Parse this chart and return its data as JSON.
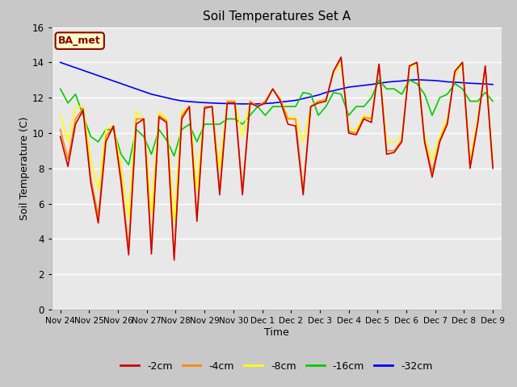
{
  "title": "Soil Temperatures Set A",
  "xlabel": "Time",
  "ylabel": "Soil Temperature (C)",
  "ylim": [
    0,
    16
  ],
  "yticks": [
    0,
    2,
    4,
    6,
    8,
    10,
    12,
    14,
    16
  ],
  "fig_bg_color": "#c8c8c8",
  "axes_bg_color": "#e8e8e8",
  "grid_color": "white",
  "annotation_text": "BA_met",
  "annotation_bg": "#ffffcc",
  "annotation_border": "#8b0000",
  "colors": {
    "-2cm": "#cc0000",
    "-4cm": "#ff8800",
    "-8cm": "#ffff00",
    "-16cm": "#00cc00",
    "-32cm": "#0000ff"
  },
  "legend_colors": [
    "#cc0000",
    "#ff8800",
    "#ffff00",
    "#00cc00",
    "#0000ff"
  ],
  "legend_labels": [
    "-2cm",
    "-4cm",
    "-8cm",
    "-16cm",
    "-32cm"
  ],
  "x_labels": [
    "Nov 24",
    "Nov 25",
    "Nov 26",
    "Nov 27",
    "Nov 28",
    "Nov 29",
    "Nov 30",
    "Dec 1",
    "Dec 2",
    "Dec 3",
    "Dec 4",
    "Dec 5",
    "Dec 6",
    "Dec 7",
    "Dec 8",
    "Dec 9"
  ],
  "series": {
    "-2cm": [
      9.8,
      8.1,
      10.5,
      11.3,
      7.2,
      4.9,
      9.5,
      10.4,
      7.2,
      3.1,
      10.5,
      10.8,
      3.15,
      10.9,
      10.6,
      2.8,
      10.8,
      11.5,
      5.0,
      11.4,
      11.5,
      6.5,
      11.7,
      11.7,
      6.5,
      11.7,
      11.5,
      11.7,
      12.5,
      11.8,
      10.5,
      10.4,
      6.5,
      11.5,
      11.7,
      11.8,
      13.5,
      14.3,
      10.0,
      9.9,
      10.8,
      10.6,
      13.9,
      8.8,
      8.9,
      9.5,
      13.8,
      14.0,
      9.5,
      7.5,
      9.5,
      10.5,
      13.5,
      14.0,
      8.0,
      10.5,
      13.8,
      8.0
    ],
    "-4cm": [
      10.2,
      8.5,
      10.8,
      11.4,
      7.5,
      5.3,
      9.8,
      10.4,
      7.5,
      3.5,
      10.8,
      10.8,
      3.6,
      11.0,
      10.7,
      3.0,
      11.0,
      11.5,
      5.3,
      11.5,
      11.5,
      6.8,
      11.8,
      11.8,
      6.8,
      11.8,
      11.5,
      11.8,
      12.5,
      11.9,
      10.8,
      10.8,
      6.8,
      11.5,
      11.8,
      11.9,
      13.5,
      14.2,
      10.1,
      10.0,
      10.9,
      10.8,
      13.9,
      9.0,
      9.0,
      9.6,
      13.8,
      14.0,
      9.6,
      7.8,
      9.6,
      10.6,
      13.5,
      14.0,
      8.1,
      10.6,
      13.8,
      8.1
    ],
    "-8cm": [
      11.0,
      9.5,
      11.5,
      11.5,
      8.5,
      6.8,
      10.2,
      10.4,
      8.2,
      5.2,
      11.2,
      10.8,
      5.4,
      11.2,
      10.8,
      5.0,
      11.2,
      11.5,
      6.8,
      11.5,
      11.5,
      8.0,
      11.8,
      11.8,
      9.8,
      11.8,
      11.5,
      11.8,
      12.5,
      11.9,
      10.9,
      10.9,
      9.5,
      11.5,
      11.8,
      11.9,
      13.4,
      13.9,
      10.3,
      10.2,
      11.0,
      10.9,
      13.8,
      9.5,
      9.5,
      9.8,
      13.7,
      13.9,
      9.8,
      8.5,
      9.8,
      10.8,
      13.3,
      13.9,
      8.5,
      10.8,
      13.7,
      8.5
    ],
    "-16cm": [
      12.5,
      11.7,
      12.2,
      11.0,
      9.8,
      9.5,
      10.2,
      10.2,
      8.8,
      8.2,
      10.2,
      9.8,
      8.8,
      10.2,
      9.6,
      8.7,
      10.2,
      10.5,
      9.5,
      10.5,
      10.5,
      10.5,
      10.8,
      10.8,
      10.5,
      11.0,
      11.5,
      11.0,
      11.5,
      11.5,
      11.5,
      11.5,
      12.3,
      12.2,
      11.0,
      11.5,
      12.3,
      12.2,
      11.0,
      11.5,
      11.5,
      12.0,
      13.0,
      12.5,
      12.5,
      12.2,
      13.0,
      12.8,
      12.2,
      11.0,
      12.0,
      12.2,
      12.8,
      12.5,
      11.8,
      11.8,
      12.3,
      11.8
    ],
    "-32cm": [
      14.0,
      13.85,
      13.7,
      13.55,
      13.4,
      13.25,
      13.1,
      12.95,
      12.8,
      12.65,
      12.5,
      12.35,
      12.2,
      12.1,
      12.0,
      11.9,
      11.82,
      11.78,
      11.75,
      11.72,
      11.7,
      11.68,
      11.67,
      11.66,
      11.65,
      11.65,
      11.65,
      11.67,
      11.7,
      11.75,
      11.8,
      11.85,
      11.95,
      12.05,
      12.15,
      12.3,
      12.4,
      12.5,
      12.6,
      12.65,
      12.7,
      12.75,
      12.82,
      12.88,
      12.92,
      12.95,
      13.0,
      13.02,
      13.0,
      12.98,
      12.95,
      12.9,
      12.88,
      12.85,
      12.82,
      12.8,
      12.78,
      12.75
    ]
  }
}
